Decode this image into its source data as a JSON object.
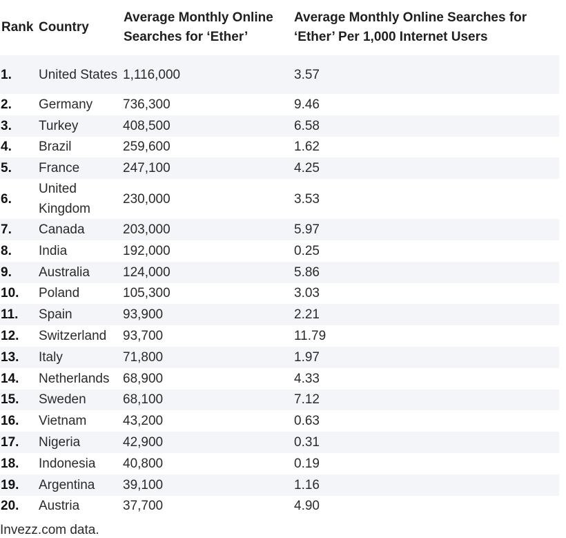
{
  "table": {
    "headers": {
      "rank": "Rank",
      "country": "Country",
      "searches": "Average Monthly Online Searches for ‘Ether’",
      "per_thousand": "Average Monthly Online Searches for ‘Ether’ Per 1,000 Internet Users"
    },
    "rows": [
      {
        "rank": "1.",
        "country": "United States",
        "searches": "1,116,000",
        "per_thousand": "3.57"
      },
      {
        "rank": "2.",
        "country": "Germany",
        "searches": "736,300",
        "per_thousand": "9.46"
      },
      {
        "rank": "3.",
        "country": "Turkey",
        "searches": "408,500",
        "per_thousand": "6.58"
      },
      {
        "rank": "4.",
        "country": "Brazil",
        "searches": "259,600",
        "per_thousand": "1.62"
      },
      {
        "rank": "5.",
        "country": "France",
        "searches": "247,100",
        "per_thousand": "4.25"
      },
      {
        "rank": "6.",
        "country": "United Kingdom",
        "searches": "230,000",
        "per_thousand": "3.53"
      },
      {
        "rank": "7.",
        "country": "Canada",
        "searches": "203,000",
        "per_thousand": "5.97"
      },
      {
        "rank": "8.",
        "country": "India",
        "searches": "192,000",
        "per_thousand": "0.25"
      },
      {
        "rank": "9.",
        "country": "Australia",
        "searches": "124,000",
        "per_thousand": "5.86"
      },
      {
        "rank": "10.",
        "country": "Poland",
        "searches": "105,300",
        "per_thousand": "3.03"
      },
      {
        "rank": "11.",
        "country": "Spain",
        "searches": "93,900",
        "per_thousand": "2.21"
      },
      {
        "rank": "12.",
        "country": "Switzerland",
        "searches": "93,700",
        "per_thousand": "11.79"
      },
      {
        "rank": "13.",
        "country": "Italy",
        "searches": "71,800",
        "per_thousand": "1.97"
      },
      {
        "rank": "14.",
        "country": "Netherlands",
        "searches": "68,900",
        "per_thousand": "4.33"
      },
      {
        "rank": "15.",
        "country": "Sweden",
        "searches": "68,100",
        "per_thousand": "7.12"
      },
      {
        "rank": "16.",
        "country": "Vietnam",
        "searches": "43,200",
        "per_thousand": "0.63"
      },
      {
        "rank": "17.",
        "country": "Nigeria",
        "searches": "42,900",
        "per_thousand": "0.31"
      },
      {
        "rank": "18.",
        "country": "Indonesia",
        "searches": "40,800",
        "per_thousand": "0.19"
      },
      {
        "rank": "19.",
        "country": "Argentina",
        "searches": "39,100",
        "per_thousand": "1.16"
      },
      {
        "rank": "20.",
        "country": "Austria",
        "searches": "37,700",
        "per_thousand": "4.90"
      }
    ]
  },
  "footer": {
    "source": "Invezz.com data."
  }
}
